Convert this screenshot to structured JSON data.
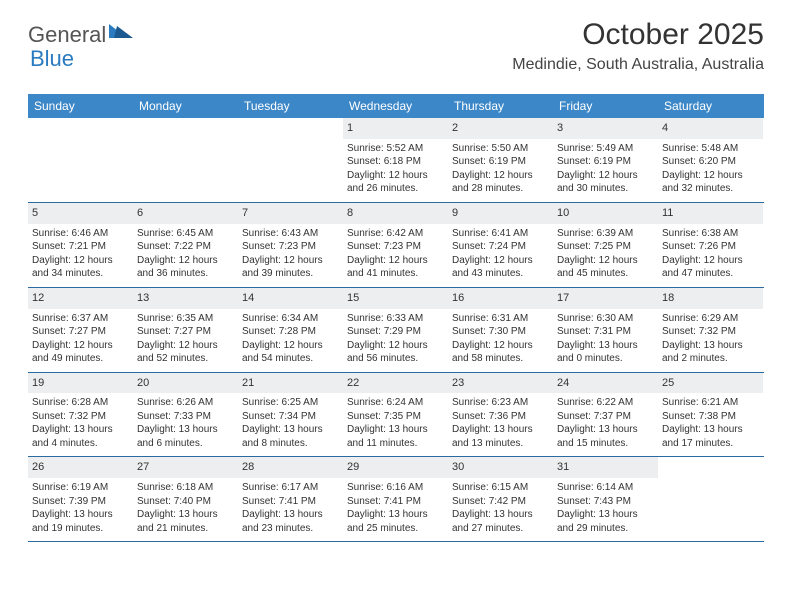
{
  "logo": {
    "part1": "General",
    "part2": "Blue"
  },
  "title": "October 2025",
  "location": "Medindie, South Australia, Australia",
  "colors": {
    "header_bg": "#3c87c7",
    "week_border": "#2a6aa0",
    "daynum_bg": "#eceef0",
    "logo_accent": "#2a7bbf"
  },
  "day_headers": [
    "Sunday",
    "Monday",
    "Tuesday",
    "Wednesday",
    "Thursday",
    "Friday",
    "Saturday"
  ],
  "weeks": [
    [
      null,
      null,
      null,
      {
        "n": "1",
        "sr": "5:52 AM",
        "ss": "6:18 PM",
        "dl": "12 hours and 26 minutes."
      },
      {
        "n": "2",
        "sr": "5:50 AM",
        "ss": "6:19 PM",
        "dl": "12 hours and 28 minutes."
      },
      {
        "n": "3",
        "sr": "5:49 AM",
        "ss": "6:19 PM",
        "dl": "12 hours and 30 minutes."
      },
      {
        "n": "4",
        "sr": "5:48 AM",
        "ss": "6:20 PM",
        "dl": "12 hours and 32 minutes."
      }
    ],
    [
      {
        "n": "5",
        "sr": "6:46 AM",
        "ss": "7:21 PM",
        "dl": "12 hours and 34 minutes."
      },
      {
        "n": "6",
        "sr": "6:45 AM",
        "ss": "7:22 PM",
        "dl": "12 hours and 36 minutes."
      },
      {
        "n": "7",
        "sr": "6:43 AM",
        "ss": "7:23 PM",
        "dl": "12 hours and 39 minutes."
      },
      {
        "n": "8",
        "sr": "6:42 AM",
        "ss": "7:23 PM",
        "dl": "12 hours and 41 minutes."
      },
      {
        "n": "9",
        "sr": "6:41 AM",
        "ss": "7:24 PM",
        "dl": "12 hours and 43 minutes."
      },
      {
        "n": "10",
        "sr": "6:39 AM",
        "ss": "7:25 PM",
        "dl": "12 hours and 45 minutes."
      },
      {
        "n": "11",
        "sr": "6:38 AM",
        "ss": "7:26 PM",
        "dl": "12 hours and 47 minutes."
      }
    ],
    [
      {
        "n": "12",
        "sr": "6:37 AM",
        "ss": "7:27 PM",
        "dl": "12 hours and 49 minutes."
      },
      {
        "n": "13",
        "sr": "6:35 AM",
        "ss": "7:27 PM",
        "dl": "12 hours and 52 minutes."
      },
      {
        "n": "14",
        "sr": "6:34 AM",
        "ss": "7:28 PM",
        "dl": "12 hours and 54 minutes."
      },
      {
        "n": "15",
        "sr": "6:33 AM",
        "ss": "7:29 PM",
        "dl": "12 hours and 56 minutes."
      },
      {
        "n": "16",
        "sr": "6:31 AM",
        "ss": "7:30 PM",
        "dl": "12 hours and 58 minutes."
      },
      {
        "n": "17",
        "sr": "6:30 AM",
        "ss": "7:31 PM",
        "dl": "13 hours and 0 minutes."
      },
      {
        "n": "18",
        "sr": "6:29 AM",
        "ss": "7:32 PM",
        "dl": "13 hours and 2 minutes."
      }
    ],
    [
      {
        "n": "19",
        "sr": "6:28 AM",
        "ss": "7:32 PM",
        "dl": "13 hours and 4 minutes."
      },
      {
        "n": "20",
        "sr": "6:26 AM",
        "ss": "7:33 PM",
        "dl": "13 hours and 6 minutes."
      },
      {
        "n": "21",
        "sr": "6:25 AM",
        "ss": "7:34 PM",
        "dl": "13 hours and 8 minutes."
      },
      {
        "n": "22",
        "sr": "6:24 AM",
        "ss": "7:35 PM",
        "dl": "13 hours and 11 minutes."
      },
      {
        "n": "23",
        "sr": "6:23 AM",
        "ss": "7:36 PM",
        "dl": "13 hours and 13 minutes."
      },
      {
        "n": "24",
        "sr": "6:22 AM",
        "ss": "7:37 PM",
        "dl": "13 hours and 15 minutes."
      },
      {
        "n": "25",
        "sr": "6:21 AM",
        "ss": "7:38 PM",
        "dl": "13 hours and 17 minutes."
      }
    ],
    [
      {
        "n": "26",
        "sr": "6:19 AM",
        "ss": "7:39 PM",
        "dl": "13 hours and 19 minutes."
      },
      {
        "n": "27",
        "sr": "6:18 AM",
        "ss": "7:40 PM",
        "dl": "13 hours and 21 minutes."
      },
      {
        "n": "28",
        "sr": "6:17 AM",
        "ss": "7:41 PM",
        "dl": "13 hours and 23 minutes."
      },
      {
        "n": "29",
        "sr": "6:16 AM",
        "ss": "7:41 PM",
        "dl": "13 hours and 25 minutes."
      },
      {
        "n": "30",
        "sr": "6:15 AM",
        "ss": "7:42 PM",
        "dl": "13 hours and 27 minutes."
      },
      {
        "n": "31",
        "sr": "6:14 AM",
        "ss": "7:43 PM",
        "dl": "13 hours and 29 minutes."
      },
      null
    ]
  ],
  "labels": {
    "sunrise": "Sunrise:",
    "sunset": "Sunset:",
    "daylight": "Daylight:"
  }
}
